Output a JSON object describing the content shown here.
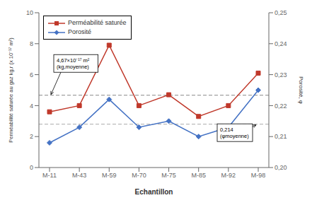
{
  "chart_data": {
    "type": "line",
    "categories": [
      "M-11",
      "M-43",
      "M-59",
      "M-70",
      "M-75",
      "M-85",
      "M-92",
      "M-98"
    ],
    "xlabel": "Echantillon",
    "ylabel": "Perméabilité saturée au gaz kg,r (x 10⁻¹⁷ m²)",
    "y2label": "Porosité, φ",
    "ylim": [
      0,
      10
    ],
    "yticks": [
      0,
      2,
      4,
      6,
      8,
      10
    ],
    "y2lim": [
      0.2,
      0.25
    ],
    "y2ticks": [
      {
        "value": 0.2,
        "label": "0,20"
      },
      {
        "value": 0.21,
        "label": "0,21"
      },
      {
        "value": 0.22,
        "label": "0,22"
      },
      {
        "value": 0.23,
        "label": "0,23"
      },
      {
        "value": 0.24,
        "label": "0,24"
      },
      {
        "value": 0.25,
        "label": "0,25"
      }
    ],
    "series": [
      {
        "name": "Perméabilité saturée",
        "color": "#c0392b",
        "marker": "square",
        "axis": "y",
        "values": [
          3.6,
          4.0,
          7.9,
          4.0,
          4.7,
          3.3,
          4.0,
          6.1
        ]
      },
      {
        "name": "Porosité",
        "color": "#4472c4",
        "marker": "diamond",
        "axis": "y2",
        "values": [
          0.208,
          0.213,
          0.222,
          0.213,
          0.215,
          0.21,
          0.213,
          0.225
        ]
      }
    ],
    "reference_lines": [
      {
        "y": 4.67,
        "axis": "y",
        "line_style": "dashed",
        "label": "4,67×10⁻¹⁷ m²\n(kg,moyenne)"
      },
      {
        "y": 0.214,
        "axis": "y2",
        "line_style": "dashed",
        "label": "0,214\n(φmoyenne)"
      }
    ],
    "legend": "upper left",
    "grid": false
  }
}
